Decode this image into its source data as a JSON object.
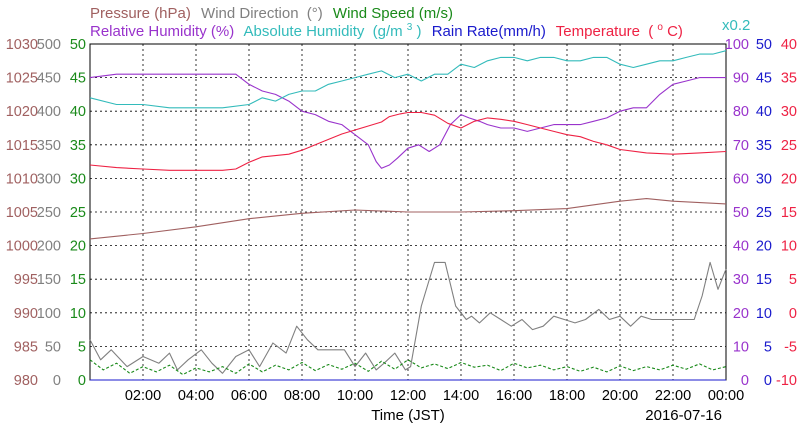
{
  "chart_data": {
    "type": "line",
    "date": "2016-07-16",
    "xlabel": "Time (JST)",
    "x_ticks": [
      "02:00",
      "04:00",
      "06:00",
      "08:00",
      "10:00",
      "12:00",
      "14:00",
      "16:00",
      "18:00",
      "20:00",
      "22:00",
      "00:00"
    ],
    "grid": true,
    "legend_placement": "top",
    "axes": {
      "pressure": {
        "label": "Pressure (hPa)",
        "ticks": [
          "980",
          "985",
          "990",
          "995",
          "1000",
          "1005",
          "1010",
          "1015",
          "1020",
          "1025",
          "1030"
        ],
        "range": [
          980,
          1030
        ],
        "color": "#a06060"
      },
      "wind_dir": {
        "label": "Wind Direction",
        "unit": "(°)",
        "ticks": [
          "0",
          "50",
          "100",
          "150",
          "200",
          "250",
          "300",
          "350",
          "400",
          "450",
          "500"
        ],
        "range": [
          0,
          500
        ],
        "color": "#808080"
      },
      "wind_speed": {
        "label": "Wind Speed (m/s)",
        "ticks": [
          "0",
          "5",
          "10",
          "15",
          "20",
          "25",
          "30",
          "35",
          "40",
          "45",
          "50"
        ],
        "range": [
          0,
          50
        ],
        "color": "#1a8a1a"
      },
      "humidity": {
        "label": "Relative Humidity (%)",
        "ticks": [
          "0",
          "10",
          "20",
          "30",
          "40",
          "50",
          "60",
          "70",
          "80",
          "90",
          "100"
        ],
        "range": [
          0,
          100
        ],
        "color": "#9933cc"
      },
      "abs_humidity": {
        "label": "Absolute Humidity",
        "unit_prefix": "(g/m",
        "unit_sup": "3",
        "unit_suffix": ")",
        "multiplier": "x0.2",
        "color": "#33bbbb"
      },
      "rain": {
        "label": "Rain Rate(mm/h)",
        "ticks": [
          "0",
          "5",
          "10",
          "15",
          "20",
          "25",
          "30",
          "35",
          "40",
          "45",
          "50"
        ],
        "range": [
          0,
          50
        ],
        "color": "#1a1acc"
      },
      "temperature": {
        "label": "Temperature",
        "unit_prefix": "(",
        "unit_sup": "o",
        "unit_suffix": "C)",
        "ticks": [
          "-10",
          "-5",
          "0",
          "5",
          "10",
          "15",
          "20",
          "25",
          "30",
          "35",
          "40"
        ],
        "range": [
          -10,
          40
        ],
        "color": "#ee2244"
      }
    },
    "series": [
      {
        "name": "Pressure (hPa)",
        "axis": "pressure",
        "color": "#a06060",
        "x": [
          0,
          2,
          4,
          6,
          8,
          10,
          12,
          14,
          16,
          18,
          20,
          21,
          22,
          24
        ],
        "y": [
          1001,
          1001.8,
          1002.8,
          1004,
          1004.8,
          1005.3,
          1005,
          1005,
          1005.2,
          1005.5,
          1006.6,
          1007.0,
          1006.6,
          1006.2
        ]
      },
      {
        "name": "Wind Direction",
        "axis": "wind_dir",
        "color": "#808080",
        "x": [
          0,
          0.4,
          0.8,
          1.4,
          2,
          2.6,
          3,
          3.3,
          3.7,
          4.2,
          4.6,
          5,
          5.5,
          6,
          6.4,
          6.9,
          7.4,
          7.8,
          8.2,
          8.6,
          9.1,
          9.6,
          10,
          10.4,
          10.8,
          11.1,
          11.5,
          11.9,
          12.1,
          12.5,
          13,
          13.4,
          13.8,
          14.2,
          14.4,
          14.7,
          15.1,
          15.5,
          15.9,
          16.3,
          16.7,
          17.1,
          17.5,
          17.9,
          18.3,
          18.7,
          19.2,
          19.6,
          20,
          20.4,
          20.8,
          21.2,
          21.6,
          22,
          22.4,
          22.8,
          23.1,
          23.4,
          23.7,
          24
        ],
        "y": [
          60,
          30,
          45,
          20,
          35,
          25,
          40,
          15,
          30,
          45,
          25,
          10,
          35,
          45,
          20,
          55,
          40,
          80,
          60,
          45,
          45,
          45,
          20,
          40,
          15,
          25,
          40,
          15,
          20,
          110,
          175,
          175,
          110,
          90,
          95,
          85,
          100,
          90,
          80,
          90,
          75,
          80,
          95,
          90,
          85,
          90,
          105,
          90,
          95,
          80,
          95,
          90,
          90,
          90,
          90,
          90,
          125,
          175,
          135,
          165
        ]
      },
      {
        "name": "Wind Speed (m/s)",
        "axis": "wind_speed",
        "color": "#1a8a1a",
        "x": [
          0,
          0.5,
          1,
          1.5,
          2,
          2.5,
          3,
          3.5,
          4,
          4.5,
          5,
          5.5,
          6,
          6.5,
          7,
          7.5,
          8,
          8.5,
          9,
          9.5,
          10,
          10.5,
          11,
          11.5,
          12,
          12.5,
          13,
          13.5,
          14,
          14.5,
          15,
          15.5,
          16,
          16.5,
          17,
          17.5,
          18,
          18.5,
          19,
          19.5,
          20,
          20.5,
          21,
          21.5,
          22,
          22.5,
          23,
          23.5,
          24
        ],
        "y": [
          3,
          1.5,
          2.5,
          1,
          2,
          1.2,
          2.2,
          0.8,
          1.8,
          1.2,
          2,
          1,
          2.4,
          1.2,
          2.2,
          1.5,
          2.6,
          1.4,
          2.3,
          1.6,
          2.5,
          1.3,
          2.8,
          1.6,
          3,
          1.8,
          2.4,
          1.7,
          2.6,
          1.9,
          2.2,
          1.4,
          2.5,
          1.8,
          2.2,
          1.5,
          2,
          1.3,
          1.9,
          1.2,
          2.1,
          1.4,
          2,
          1.5,
          2.2,
          1.6,
          2.4,
          1.5,
          2
        ]
      },
      {
        "name": "Relative Humidity (%)",
        "axis": "humidity",
        "color": "#9933cc",
        "x": [
          0,
          1,
          2,
          3,
          4,
          5,
          5.5,
          6,
          6.5,
          7,
          7.5,
          8,
          8.5,
          9,
          9.5,
          10,
          10.5,
          10.8,
          11,
          11.3,
          11.6,
          12,
          12.4,
          12.8,
          13.2,
          13.6,
          14,
          14.3,
          14.7,
          15,
          15.5,
          16,
          16.5,
          17,
          17.5,
          18,
          18.5,
          19,
          19.5,
          20,
          20.5,
          21,
          21.5,
          22,
          22.5,
          23,
          23.5,
          24
        ],
        "y": [
          90,
          91,
          91,
          91,
          91,
          91,
          91,
          88,
          86,
          85,
          83,
          80,
          79,
          77,
          76,
          73,
          70,
          65,
          63,
          64,
          66,
          69,
          70,
          68,
          70,
          76,
          79,
          78,
          77,
          76,
          75,
          75,
          74,
          75,
          76,
          76,
          76,
          77,
          78,
          80,
          81,
          81,
          85,
          88,
          89,
          90,
          90,
          90
        ]
      },
      {
        "name": "Absolute Humidity",
        "axis": "humidity",
        "color": "#33bbbb",
        "x": [
          0,
          1,
          2,
          3,
          4,
          5,
          6,
          6.5,
          7,
          7.5,
          8,
          8.5,
          9,
          9.5,
          10,
          10.5,
          11,
          11.5,
          12,
          12.5,
          13,
          13.5,
          14,
          14.5,
          15,
          15.5,
          16,
          16.5,
          17,
          17.5,
          18,
          18.5,
          19,
          19.5,
          20,
          20.5,
          21,
          21.5,
          22,
          22.5,
          23,
          23.5,
          24
        ],
        "y": [
          84,
          82,
          82,
          81,
          81,
          81,
          82,
          84,
          83,
          85,
          86,
          86,
          88,
          89,
          90,
          91,
          92,
          90,
          91,
          89,
          91,
          91,
          94,
          93,
          95,
          96,
          96,
          95,
          96,
          96,
          95,
          95,
          96,
          96,
          94,
          93,
          94,
          95,
          95,
          96,
          97,
          97,
          98
        ]
      },
      {
        "name": "Rain Rate(mm/h)",
        "axis": "rain",
        "color": "#1a1acc",
        "x": [
          0,
          24
        ],
        "y": [
          0,
          0
        ]
      },
      {
        "name": "Temperature",
        "axis": "temperature",
        "color": "#ee2244",
        "x": [
          0,
          1,
          2,
          3,
          4,
          5,
          5.5,
          6,
          6.5,
          7,
          7.5,
          8,
          8.5,
          9,
          9.5,
          10,
          10.5,
          11,
          11.3,
          11.7,
          12,
          12.5,
          13,
          13.5,
          14,
          14.5,
          15,
          15.5,
          16,
          16.5,
          17,
          17.5,
          18,
          18.5,
          19,
          19.5,
          20,
          21,
          22,
          23,
          24
        ],
        "y": [
          22,
          21.6,
          21.4,
          21.2,
          21.2,
          21.2,
          21.4,
          22.4,
          23.2,
          23.4,
          23.6,
          24.2,
          25,
          25.8,
          26.6,
          27.2,
          27.8,
          28.4,
          29.2,
          29.6,
          29.8,
          29.8,
          29.4,
          28.2,
          27.5,
          28.5,
          29,
          28.8,
          28.5,
          28,
          27.5,
          27,
          26.5,
          26.2,
          25.5,
          25,
          24.3,
          23.8,
          23.6,
          23.8,
          24
        ]
      }
    ]
  }
}
